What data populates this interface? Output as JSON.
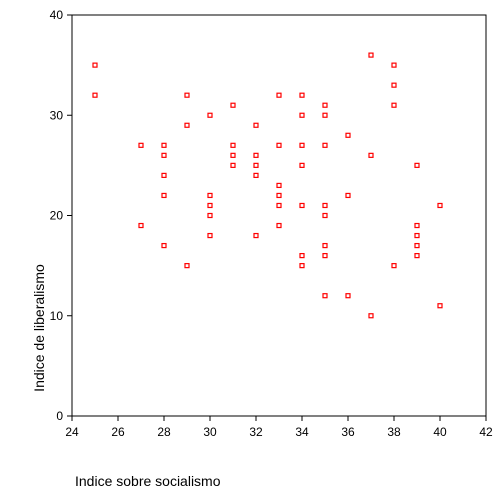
{
  "chart_data": {
    "type": "scatter",
    "title": "",
    "xlabel": "Indice sobre socialismo",
    "ylabel": "Indice de liberalismo",
    "xlim": [
      24,
      42
    ],
    "ylim": [
      0,
      40
    ],
    "xticks": [
      24,
      26,
      28,
      30,
      32,
      34,
      36,
      38,
      40,
      42
    ],
    "yticks": [
      0,
      10,
      20,
      30,
      40
    ],
    "grid": false,
    "marker": "hollow-square",
    "marker_color": "#ff0000",
    "series": [
      {
        "points": [
          [
            25,
            35
          ],
          [
            25,
            32
          ],
          [
            27,
            27
          ],
          [
            27,
            19
          ],
          [
            28,
            27
          ],
          [
            28,
            26
          ],
          [
            28,
            24
          ],
          [
            28,
            22
          ],
          [
            28,
            17
          ],
          [
            29,
            32
          ],
          [
            29,
            29
          ],
          [
            29,
            15
          ],
          [
            30,
            30
          ],
          [
            30,
            22
          ],
          [
            30,
            21
          ],
          [
            30,
            20
          ],
          [
            30,
            18
          ],
          [
            31,
            31
          ],
          [
            31,
            27
          ],
          [
            31,
            26
          ],
          [
            31,
            25
          ],
          [
            32,
            29
          ],
          [
            32,
            26
          ],
          [
            32,
            25
          ],
          [
            32,
            24
          ],
          [
            32,
            18
          ],
          [
            33,
            32
          ],
          [
            33,
            27
          ],
          [
            33,
            23
          ],
          [
            33,
            22
          ],
          [
            33,
            21
          ],
          [
            33,
            19
          ],
          [
            34,
            32
          ],
          [
            34,
            30
          ],
          [
            34,
            27
          ],
          [
            34,
            25
          ],
          [
            34,
            21
          ],
          [
            34,
            16
          ],
          [
            34,
            15
          ],
          [
            35,
            31
          ],
          [
            35,
            30
          ],
          [
            35,
            27
          ],
          [
            35,
            21
          ],
          [
            35,
            20
          ],
          [
            35,
            17
          ],
          [
            35,
            16
          ],
          [
            35,
            12
          ],
          [
            36,
            28
          ],
          [
            36,
            22
          ],
          [
            36,
            12
          ],
          [
            37,
            36
          ],
          [
            37,
            26
          ],
          [
            37,
            10
          ],
          [
            38,
            35
          ],
          [
            38,
            33
          ],
          [
            38,
            31
          ],
          [
            38,
            15
          ],
          [
            39,
            25
          ],
          [
            39,
            19
          ],
          [
            39,
            18
          ],
          [
            39,
            17
          ],
          [
            39,
            16
          ],
          [
            40,
            21
          ],
          [
            40,
            11
          ]
        ]
      }
    ]
  }
}
